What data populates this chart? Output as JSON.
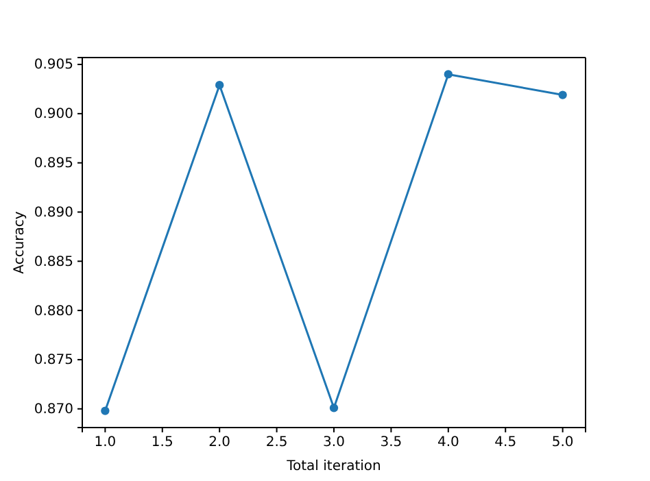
{
  "chart_data": {
    "type": "line",
    "xlabel": "Total iteration",
    "ylabel": "Accuracy",
    "x": [
      1,
      2,
      3,
      4,
      5
    ],
    "series": [
      {
        "color": "#1f77b4",
        "values": [
          0.8698,
          0.9029,
          0.8701,
          0.904,
          0.9019
        ]
      }
    ],
    "xlim": [
      0.8,
      5.2
    ],
    "ylim": [
      0.8681,
      0.9057
    ],
    "xticks": [
      {
        "value": 1,
        "label": "1.0"
      },
      {
        "value": 1.5,
        "label": "1.5"
      },
      {
        "value": 2,
        "label": "2.0"
      },
      {
        "value": 2.5,
        "label": "2.5"
      },
      {
        "value": 3,
        "label": "3.0"
      },
      {
        "value": 3.5,
        "label": "3.5"
      },
      {
        "value": 4,
        "label": "4.0"
      },
      {
        "value": 4.5,
        "label": "4.5"
      },
      {
        "value": 5,
        "label": "5.0"
      }
    ],
    "yticks": [
      {
        "value": 0.87,
        "label": "0.870"
      },
      {
        "value": 0.875,
        "label": "0.875"
      },
      {
        "value": 0.88,
        "label": "0.880"
      },
      {
        "value": 0.885,
        "label": "0.885"
      },
      {
        "value": 0.89,
        "label": "0.890"
      },
      {
        "value": 0.895,
        "label": "0.895"
      },
      {
        "value": 0.9,
        "label": "0.900"
      },
      {
        "value": 0.905,
        "label": "0.905"
      }
    ],
    "marker": "circle",
    "line_style": "solid"
  }
}
